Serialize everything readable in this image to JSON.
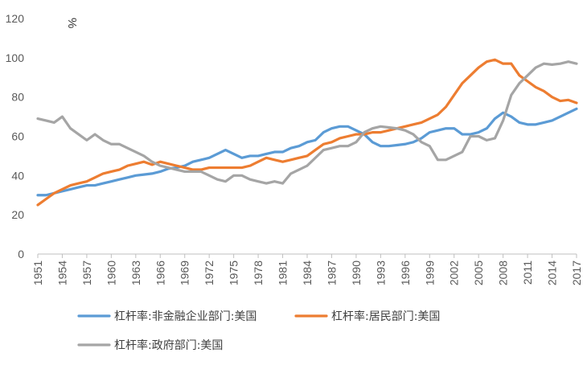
{
  "chart_data": {
    "type": "line",
    "title": "",
    "unit_label": "%",
    "xlabel": "",
    "ylabel": "",
    "ylim": [
      0,
      120
    ],
    "yticks": [
      0,
      20,
      40,
      60,
      80,
      100,
      120
    ],
    "xlim": [
      1951,
      2017
    ],
    "xticks": [
      1951,
      1954,
      1957,
      1960,
      1963,
      1966,
      1969,
      1972,
      1975,
      1978,
      1981,
      1984,
      1987,
      1990,
      1993,
      1996,
      1999,
      2002,
      2005,
      2008,
      2011,
      2014,
      2017
    ],
    "grid": false,
    "legend_position": "bottom",
    "series": [
      {
        "name": "杠杆率:非金融企业部门:美国",
        "color": "#5B9BD5",
        "x": [
          1951,
          1952,
          1953,
          1954,
          1955,
          1956,
          1957,
          1958,
          1959,
          1960,
          1961,
          1962,
          1963,
          1964,
          1965,
          1966,
          1967,
          1968,
          1969,
          1970,
          1971,
          1972,
          1973,
          1974,
          1975,
          1976,
          1977,
          1978,
          1979,
          1980,
          1981,
          1982,
          1983,
          1984,
          1985,
          1986,
          1987,
          1988,
          1989,
          1990,
          1991,
          1992,
          1993,
          1994,
          1995,
          1996,
          1997,
          1998,
          1999,
          2000,
          2001,
          2002,
          2003,
          2004,
          2005,
          2006,
          2007,
          2008,
          2009,
          2010,
          2011,
          2012,
          2013,
          2014,
          2015,
          2016,
          2017
        ],
        "values": [
          30,
          30,
          31,
          32,
          33,
          34,
          35,
          35,
          36,
          37,
          38,
          39,
          40,
          40.5,
          41,
          42,
          43.5,
          44,
          45,
          47,
          48,
          49,
          51,
          53,
          51,
          49,
          50,
          50,
          51,
          52,
          52,
          54,
          55,
          57,
          58,
          62,
          64,
          65,
          65,
          63,
          61,
          57,
          55,
          55,
          55.5,
          56,
          57,
          59,
          62,
          63,
          64,
          64,
          61,
          61,
          62,
          64,
          69,
          72,
          70,
          67,
          66,
          66,
          67,
          68,
          70,
          72,
          74
        ]
      },
      {
        "name": "杠杆率:居民部门:美国",
        "color": "#ED7D31",
        "x": [
          1951,
          1952,
          1953,
          1954,
          1955,
          1956,
          1957,
          1958,
          1959,
          1960,
          1961,
          1962,
          1963,
          1964,
          1965,
          1966,
          1967,
          1968,
          1969,
          1970,
          1971,
          1972,
          1973,
          1974,
          1975,
          1976,
          1977,
          1978,
          1979,
          1980,
          1981,
          1982,
          1983,
          1984,
          1985,
          1986,
          1987,
          1988,
          1989,
          1990,
          1991,
          1992,
          1993,
          1994,
          1995,
          1996,
          1997,
          1998,
          1999,
          2000,
          2001,
          2002,
          2003,
          2004,
          2005,
          2006,
          2007,
          2008,
          2009,
          2010,
          2011,
          2012,
          2013,
          2014,
          2015,
          2016,
          2017
        ],
        "values": [
          25,
          28,
          31,
          33,
          35,
          36,
          37,
          39,
          41,
          42,
          43,
          45,
          46,
          47,
          45.5,
          47,
          46,
          45,
          44,
          43,
          43,
          44,
          44,
          44,
          44,
          44,
          45,
          47,
          49,
          48,
          47,
          48,
          49,
          50,
          53,
          56,
          57,
          59,
          60,
          61,
          61,
          62,
          62,
          63,
          64,
          65,
          66,
          67,
          69,
          71,
          75,
          81,
          87,
          91,
          95,
          98,
          99,
          97,
          97,
          91,
          88,
          85,
          83,
          80,
          78,
          78.5,
          77
        ]
      },
      {
        "name": "杠杆率:政府部门:美国",
        "color": "#A5A5A5",
        "x": [
          1951,
          1952,
          1953,
          1954,
          1955,
          1956,
          1957,
          1958,
          1959,
          1960,
          1961,
          1962,
          1963,
          1964,
          1965,
          1966,
          1967,
          1968,
          1969,
          1970,
          1971,
          1972,
          1973,
          1974,
          1975,
          1976,
          1977,
          1978,
          1979,
          1980,
          1981,
          1982,
          1983,
          1984,
          1985,
          1986,
          1987,
          1988,
          1989,
          1990,
          1991,
          1992,
          1993,
          1994,
          1995,
          1996,
          1997,
          1998,
          1999,
          2000,
          2001,
          2002,
          2003,
          2004,
          2005,
          2006,
          2007,
          2008,
          2009,
          2010,
          2011,
          2012,
          2013,
          2014,
          2015,
          2016,
          2017
        ],
        "values": [
          69,
          68,
          67,
          70,
          64,
          61,
          58,
          61,
          58,
          56,
          56,
          54,
          52,
          50,
          47,
          45,
          44,
          43,
          42,
          42,
          42,
          40,
          38,
          37,
          40,
          40,
          38,
          37,
          36,
          37,
          36,
          41,
          43,
          45,
          49,
          53,
          54,
          55,
          55,
          57,
          62,
          64,
          65,
          64.5,
          64,
          63,
          61,
          57,
          55,
          48,
          48,
          50,
          52,
          60,
          60,
          58,
          59,
          68,
          81,
          87,
          91,
          95,
          97,
          96.5,
          97,
          98,
          97
        ]
      }
    ]
  }
}
